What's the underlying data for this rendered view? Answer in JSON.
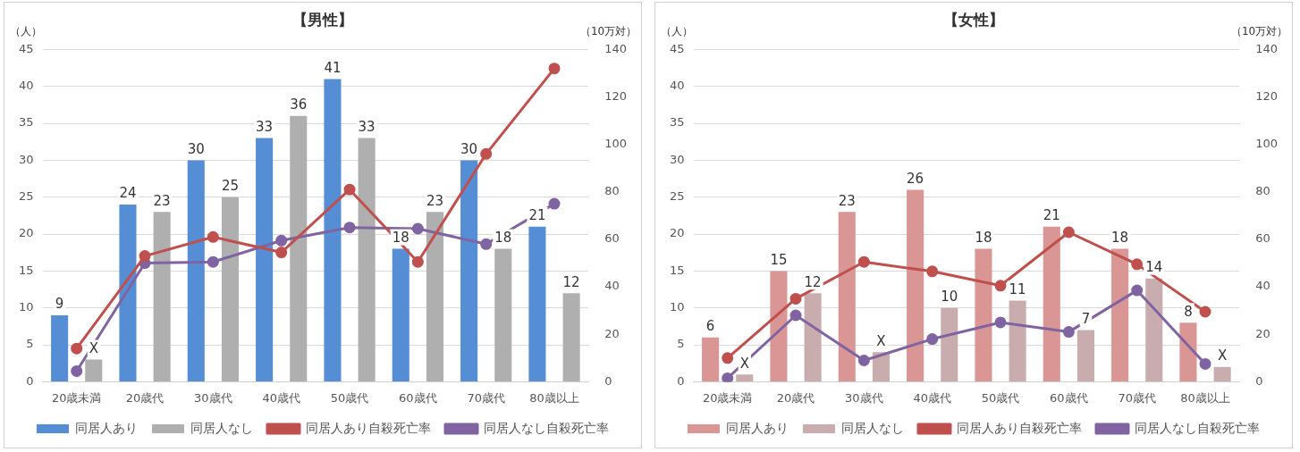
{
  "chart_data": [
    {
      "type": "bar",
      "title": "【男性】",
      "ylabel": "（人）",
      "y2label": "（10万対）",
      "categories": [
        "20歳未満",
        "20歳代",
        "30歳代",
        "40歳代",
        "50歳代",
        "60歳代",
        "70歳代",
        "80歳以上"
      ],
      "series": [
        {
          "name": "同居人あり",
          "type": "bar",
          "color": "#558ed5",
          "values": [
            9,
            24,
            30,
            33,
            41,
            18,
            30,
            21
          ],
          "value_labels": [
            "9",
            "24",
            "30",
            "33",
            "41",
            "18",
            "30",
            "21"
          ]
        },
        {
          "name": "同居人なし",
          "type": "bar",
          "color": "#afafaf",
          "values": [
            3,
            23,
            25,
            36,
            33,
            23,
            18,
            12
          ],
          "value_labels": [
            "X",
            "23",
            "25",
            "36",
            "33",
            "23",
            "18",
            "12"
          ]
        },
        {
          "name": "同居人あり自殺死亡率",
          "type": "line",
          "axis": "y2",
          "color": "#c0504d",
          "values": [
            14,
            53,
            61,
            54.5,
            81,
            50.5,
            96,
            132
          ]
        },
        {
          "name": "同居人なし自殺死亡率",
          "type": "line",
          "axis": "y2",
          "color": "#8064a2",
          "values": [
            4.5,
            50,
            50.5,
            59.5,
            65,
            64.5,
            58,
            75
          ]
        }
      ],
      "ylim": [
        0,
        45
      ],
      "yticks": [
        0,
        5,
        10,
        15,
        20,
        25,
        30,
        35,
        40,
        45
      ],
      "y2lim": [
        0,
        140
      ],
      "y2ticks": [
        0,
        20,
        40,
        60,
        80,
        100,
        120,
        140
      ],
      "grid": "y",
      "legend": "bottom",
      "marker": "circle",
      "line_style": "solid"
    },
    {
      "type": "bar",
      "title": "【女性】",
      "ylabel": "（人）",
      "y2label": "（10万対）",
      "categories": [
        "20歳未満",
        "20歳代",
        "30歳代",
        "40歳代",
        "50歳代",
        "60歳代",
        "70歳代",
        "80歳以上"
      ],
      "series": [
        {
          "name": "同居人あり",
          "type": "bar",
          "color": "#d99694",
          "values": [
            6,
            15,
            23,
            26,
            18,
            21,
            18,
            8
          ],
          "value_labels": [
            "6",
            "15",
            "23",
            "26",
            "18",
            "21",
            "18",
            "8"
          ]
        },
        {
          "name": "同居人なし",
          "type": "bar",
          "color": "#c9adae",
          "values": [
            1,
            12,
            4,
            10,
            11,
            7,
            14,
            2
          ],
          "value_labels": [
            "X",
            "12",
            "X",
            "10",
            "11",
            "7",
            "14",
            "X"
          ]
        },
        {
          "name": "同居人あり自殺死亡率",
          "type": "line",
          "axis": "y2",
          "color": "#c0504d",
          "values": [
            10,
            35,
            50.5,
            46.5,
            40.5,
            63,
            49.5,
            29.5
          ]
        },
        {
          "name": "同居人なし自殺死亡率",
          "type": "line",
          "axis": "y2",
          "color": "#8064a2",
          "values": [
            1.5,
            28,
            9,
            18,
            25,
            21,
            38.5,
            7.5
          ]
        }
      ],
      "ylim": [
        0,
        45
      ],
      "yticks": [
        0,
        5,
        10,
        15,
        20,
        25,
        30,
        35,
        40,
        45
      ],
      "y2lim": [
        0,
        140
      ],
      "y2ticks": [
        0,
        20,
        40,
        60,
        80,
        100,
        120,
        140
      ],
      "grid": "y",
      "legend": "bottom",
      "marker": "circle",
      "line_style": "solid"
    }
  ]
}
